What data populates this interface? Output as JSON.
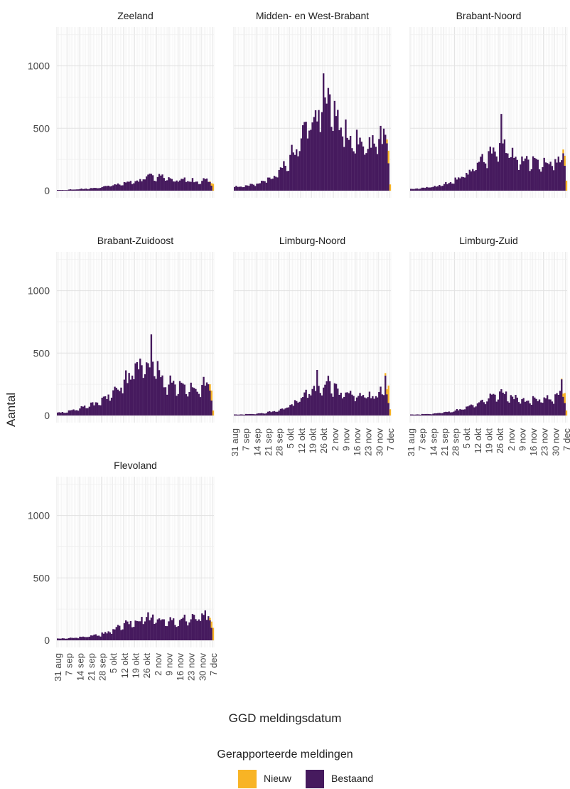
{
  "colors": {
    "nieuw": "#F8B425",
    "bestaand": "#461A5E",
    "grid_major": "#e2e2e2",
    "grid_minor": "#efefef"
  },
  "axis": {
    "xlabel": "GGD meldingsdatum",
    "ylabel": "Aantal"
  },
  "legend": {
    "title": "Gerapporteerde meldingen",
    "items": [
      {
        "label": "Nieuw",
        "color": "#F8B425"
      },
      {
        "label": "Bestaand",
        "color": "#461A5E"
      }
    ]
  },
  "chart_data": {
    "type": "bar",
    "stacked": true,
    "facets": true,
    "xlabel": "GGD meldingsdatum",
    "ylabel": "Aantal",
    "ylim": [
      0,
      1300
    ],
    "yticks": [
      0,
      500,
      1000
    ],
    "xrange": [
      "2020-08-31",
      "2020-12-08"
    ],
    "xticks": [
      {
        "date": "2020-08-31",
        "label": "31 aug"
      },
      {
        "date": "2020-09-07",
        "label": "7 sep"
      },
      {
        "date": "2020-09-14",
        "label": "14 sep"
      },
      {
        "date": "2020-09-21",
        "label": "21 sep"
      },
      {
        "date": "2020-09-28",
        "label": "28 sep"
      },
      {
        "date": "2020-10-05",
        "label": "5 okt"
      },
      {
        "date": "2020-10-12",
        "label": "12 okt"
      },
      {
        "date": "2020-10-19",
        "label": "19 okt"
      },
      {
        "date": "2020-10-26",
        "label": "26 okt"
      },
      {
        "date": "2020-11-02",
        "label": "2 nov"
      },
      {
        "date": "2020-11-09",
        "label": "9 nov"
      },
      {
        "date": "2020-11-16",
        "label": "16 nov"
      },
      {
        "date": "2020-11-23",
        "label": "23 nov"
      },
      {
        "date": "2020-11-30",
        "label": "30 nov"
      },
      {
        "date": "2020-12-07",
        "label": "7 dec"
      }
    ],
    "grid": true,
    "legend_position": "bottom",
    "panels": [
      {
        "title": "Zeeland",
        "weekly_bestaand": [
          {
            "week": "2020-08-31",
            "value": 5
          },
          {
            "week": "2020-09-07",
            "value": 10
          },
          {
            "week": "2020-09-14",
            "value": 15
          },
          {
            "week": "2020-09-21",
            "value": 20
          },
          {
            "week": "2020-09-28",
            "value": 35
          },
          {
            "week": "2020-10-05",
            "value": 55
          },
          {
            "week": "2020-10-12",
            "value": 75
          },
          {
            "week": "2020-10-19",
            "value": 90
          },
          {
            "week": "2020-10-26",
            "value": 120
          },
          {
            "week": "2020-11-02",
            "value": 110
          },
          {
            "week": "2020-11-09",
            "value": 85
          },
          {
            "week": "2020-11-16",
            "value": 90
          },
          {
            "week": "2020-11-23",
            "value": 75
          },
          {
            "week": "2020-11-30",
            "value": 80
          }
        ],
        "final_days": [
          {
            "date": "2020-12-05",
            "bestaand": 70,
            "nieuw": 5
          },
          {
            "date": "2020-12-06",
            "bestaand": 40,
            "nieuw": 20
          },
          {
            "date": "2020-12-07",
            "bestaand": 0,
            "nieuw": 55
          }
        ],
        "peak": {
          "date": "2020-10-29",
          "value": 135
        }
      },
      {
        "title": "Midden- en West-Brabant",
        "weekly_bestaand": [
          {
            "week": "2020-08-31",
            "value": 30
          },
          {
            "week": "2020-09-07",
            "value": 45
          },
          {
            "week": "2020-09-14",
            "value": 70
          },
          {
            "week": "2020-09-21",
            "value": 110
          },
          {
            "week": "2020-09-28",
            "value": 200
          },
          {
            "week": "2020-10-05",
            "value": 330
          },
          {
            "week": "2020-10-12",
            "value": 520
          },
          {
            "week": "2020-10-19",
            "value": 630
          },
          {
            "week": "2020-10-26",
            "value": 820
          },
          {
            "week": "2020-11-02",
            "value": 560
          },
          {
            "week": "2020-11-09",
            "value": 420
          },
          {
            "week": "2020-11-16",
            "value": 380
          },
          {
            "week": "2020-11-23",
            "value": 370
          },
          {
            "week": "2020-11-30",
            "value": 440
          }
        ],
        "final_days": [
          {
            "date": "2020-12-05",
            "bestaand": 380,
            "nieuw": 30
          },
          {
            "date": "2020-12-06",
            "bestaand": 220,
            "nieuw": 100
          },
          {
            "date": "2020-12-07",
            "bestaand": 0,
            "nieuw": 50
          }
        ],
        "peak": {
          "date": "2020-10-26",
          "value": 940
        }
      },
      {
        "title": "Brabant-Noord",
        "weekly_bestaand": [
          {
            "week": "2020-08-31",
            "value": 15
          },
          {
            "week": "2020-09-07",
            "value": 25
          },
          {
            "week": "2020-09-14",
            "value": 40
          },
          {
            "week": "2020-09-21",
            "value": 65
          },
          {
            "week": "2020-09-28",
            "value": 100
          },
          {
            "week": "2020-10-05",
            "value": 155
          },
          {
            "week": "2020-10-12",
            "value": 250
          },
          {
            "week": "2020-10-19",
            "value": 290
          },
          {
            "week": "2020-10-26",
            "value": 360
          },
          {
            "week": "2020-11-02",
            "value": 250
          },
          {
            "week": "2020-11-09",
            "value": 230
          },
          {
            "week": "2020-11-16",
            "value": 220
          },
          {
            "week": "2020-11-23",
            "value": 210
          },
          {
            "week": "2020-11-30",
            "value": 260
          }
        ],
        "final_days": [
          {
            "date": "2020-12-05",
            "bestaand": 300,
            "nieuw": 30
          },
          {
            "date": "2020-12-06",
            "bestaand": 200,
            "nieuw": 80
          },
          {
            "date": "2020-12-07",
            "bestaand": 0,
            "nieuw": 80
          }
        ],
        "peak": {
          "date": "2020-10-27",
          "value": 615
        }
      },
      {
        "title": "Brabant-Zuidoost",
        "weekly_bestaand": [
          {
            "week": "2020-08-31",
            "value": 25
          },
          {
            "week": "2020-09-07",
            "value": 40
          },
          {
            "week": "2020-09-14",
            "value": 70
          },
          {
            "week": "2020-09-21",
            "value": 100
          },
          {
            "week": "2020-09-28",
            "value": 140
          },
          {
            "week": "2020-10-05",
            "value": 220
          },
          {
            "week": "2020-10-12",
            "value": 330
          },
          {
            "week": "2020-10-19",
            "value": 380
          },
          {
            "week": "2020-10-26",
            "value": 450
          },
          {
            "week": "2020-11-02",
            "value": 290
          },
          {
            "week": "2020-11-09",
            "value": 230
          },
          {
            "week": "2020-11-16",
            "value": 220
          },
          {
            "week": "2020-11-23",
            "value": 210
          },
          {
            "week": "2020-11-30",
            "value": 250
          }
        ],
        "final_days": [
          {
            "date": "2020-12-05",
            "bestaand": 200,
            "nieuw": 50
          },
          {
            "date": "2020-12-06",
            "bestaand": 120,
            "nieuw": 80
          },
          {
            "date": "2020-12-07",
            "bestaand": 0,
            "nieuw": 40
          }
        ],
        "peak": {
          "date": "2020-10-29",
          "value": 650
        }
      },
      {
        "title": "Limburg-Noord",
        "weekly_bestaand": [
          {
            "week": "2020-08-31",
            "value": 8
          },
          {
            "week": "2020-09-07",
            "value": 12
          },
          {
            "week": "2020-09-14",
            "value": 18
          },
          {
            "week": "2020-09-21",
            "value": 30
          },
          {
            "week": "2020-09-28",
            "value": 55
          },
          {
            "week": "2020-10-05",
            "value": 100
          },
          {
            "week": "2020-10-12",
            "value": 170
          },
          {
            "week": "2020-10-19",
            "value": 230
          },
          {
            "week": "2020-10-26",
            "value": 260
          },
          {
            "week": "2020-11-02",
            "value": 190
          },
          {
            "week": "2020-11-09",
            "value": 170
          },
          {
            "week": "2020-11-16",
            "value": 160
          },
          {
            "week": "2020-11-23",
            "value": 160
          },
          {
            "week": "2020-11-30",
            "value": 190
          }
        ],
        "final_days": [
          {
            "date": "2020-12-04",
            "bestaand": 320,
            "nieuw": 20
          },
          {
            "date": "2020-12-05",
            "bestaand": 170,
            "nieuw": 40
          },
          {
            "date": "2020-12-06",
            "bestaand": 100,
            "nieuw": 140
          },
          {
            "date": "2020-12-07",
            "bestaand": 0,
            "nieuw": 50
          }
        ],
        "peak": {
          "date": "2020-10-22",
          "value": 365
        }
      },
      {
        "title": "Limburg-Zuid",
        "weekly_bestaand": [
          {
            "week": "2020-08-31",
            "value": 8
          },
          {
            "week": "2020-09-07",
            "value": 12
          },
          {
            "week": "2020-09-14",
            "value": 18
          },
          {
            "week": "2020-09-21",
            "value": 28
          },
          {
            "week": "2020-09-28",
            "value": 45
          },
          {
            "week": "2020-10-05",
            "value": 75
          },
          {
            "week": "2020-10-12",
            "value": 110
          },
          {
            "week": "2020-10-19",
            "value": 150
          },
          {
            "week": "2020-10-26",
            "value": 185
          },
          {
            "week": "2020-11-02",
            "value": 140
          },
          {
            "week": "2020-11-09",
            "value": 125
          },
          {
            "week": "2020-11-16",
            "value": 130
          },
          {
            "week": "2020-11-23",
            "value": 140
          },
          {
            "week": "2020-11-30",
            "value": 160
          }
        ],
        "final_days": [
          {
            "date": "2020-12-04",
            "bestaand": 290,
            "nieuw": 5
          },
          {
            "date": "2020-12-05",
            "bestaand": 150,
            "nieuw": 25
          },
          {
            "date": "2020-12-06",
            "bestaand": 100,
            "nieuw": 80
          },
          {
            "date": "2020-12-07",
            "bestaand": 0,
            "nieuw": 40
          }
        ],
        "peak": {
          "date": "2020-12-04",
          "value": 295
        }
      },
      {
        "title": "Flevoland",
        "weekly_bestaand": [
          {
            "week": "2020-08-31",
            "value": 15
          },
          {
            "week": "2020-09-07",
            "value": 20
          },
          {
            "week": "2020-09-14",
            "value": 30
          },
          {
            "week": "2020-09-21",
            "value": 40
          },
          {
            "week": "2020-09-28",
            "value": 60
          },
          {
            "week": "2020-10-05",
            "value": 100
          },
          {
            "week": "2020-10-12",
            "value": 140
          },
          {
            "week": "2020-10-19",
            "value": 165
          },
          {
            "week": "2020-10-26",
            "value": 190
          },
          {
            "week": "2020-11-02",
            "value": 160
          },
          {
            "week": "2020-11-09",
            "value": 150
          },
          {
            "week": "2020-11-16",
            "value": 170
          },
          {
            "week": "2020-11-23",
            "value": 175
          },
          {
            "week": "2020-11-30",
            "value": 190
          }
        ],
        "final_days": [
          {
            "date": "2020-12-05",
            "bestaand": 160,
            "nieuw": 20
          },
          {
            "date": "2020-12-06",
            "bestaand": 100,
            "nieuw": 50
          },
          {
            "date": "2020-12-07",
            "bestaand": 0,
            "nieuw": 100
          }
        ],
        "peak": {
          "date": "2020-12-02",
          "value": 240
        }
      }
    ]
  }
}
